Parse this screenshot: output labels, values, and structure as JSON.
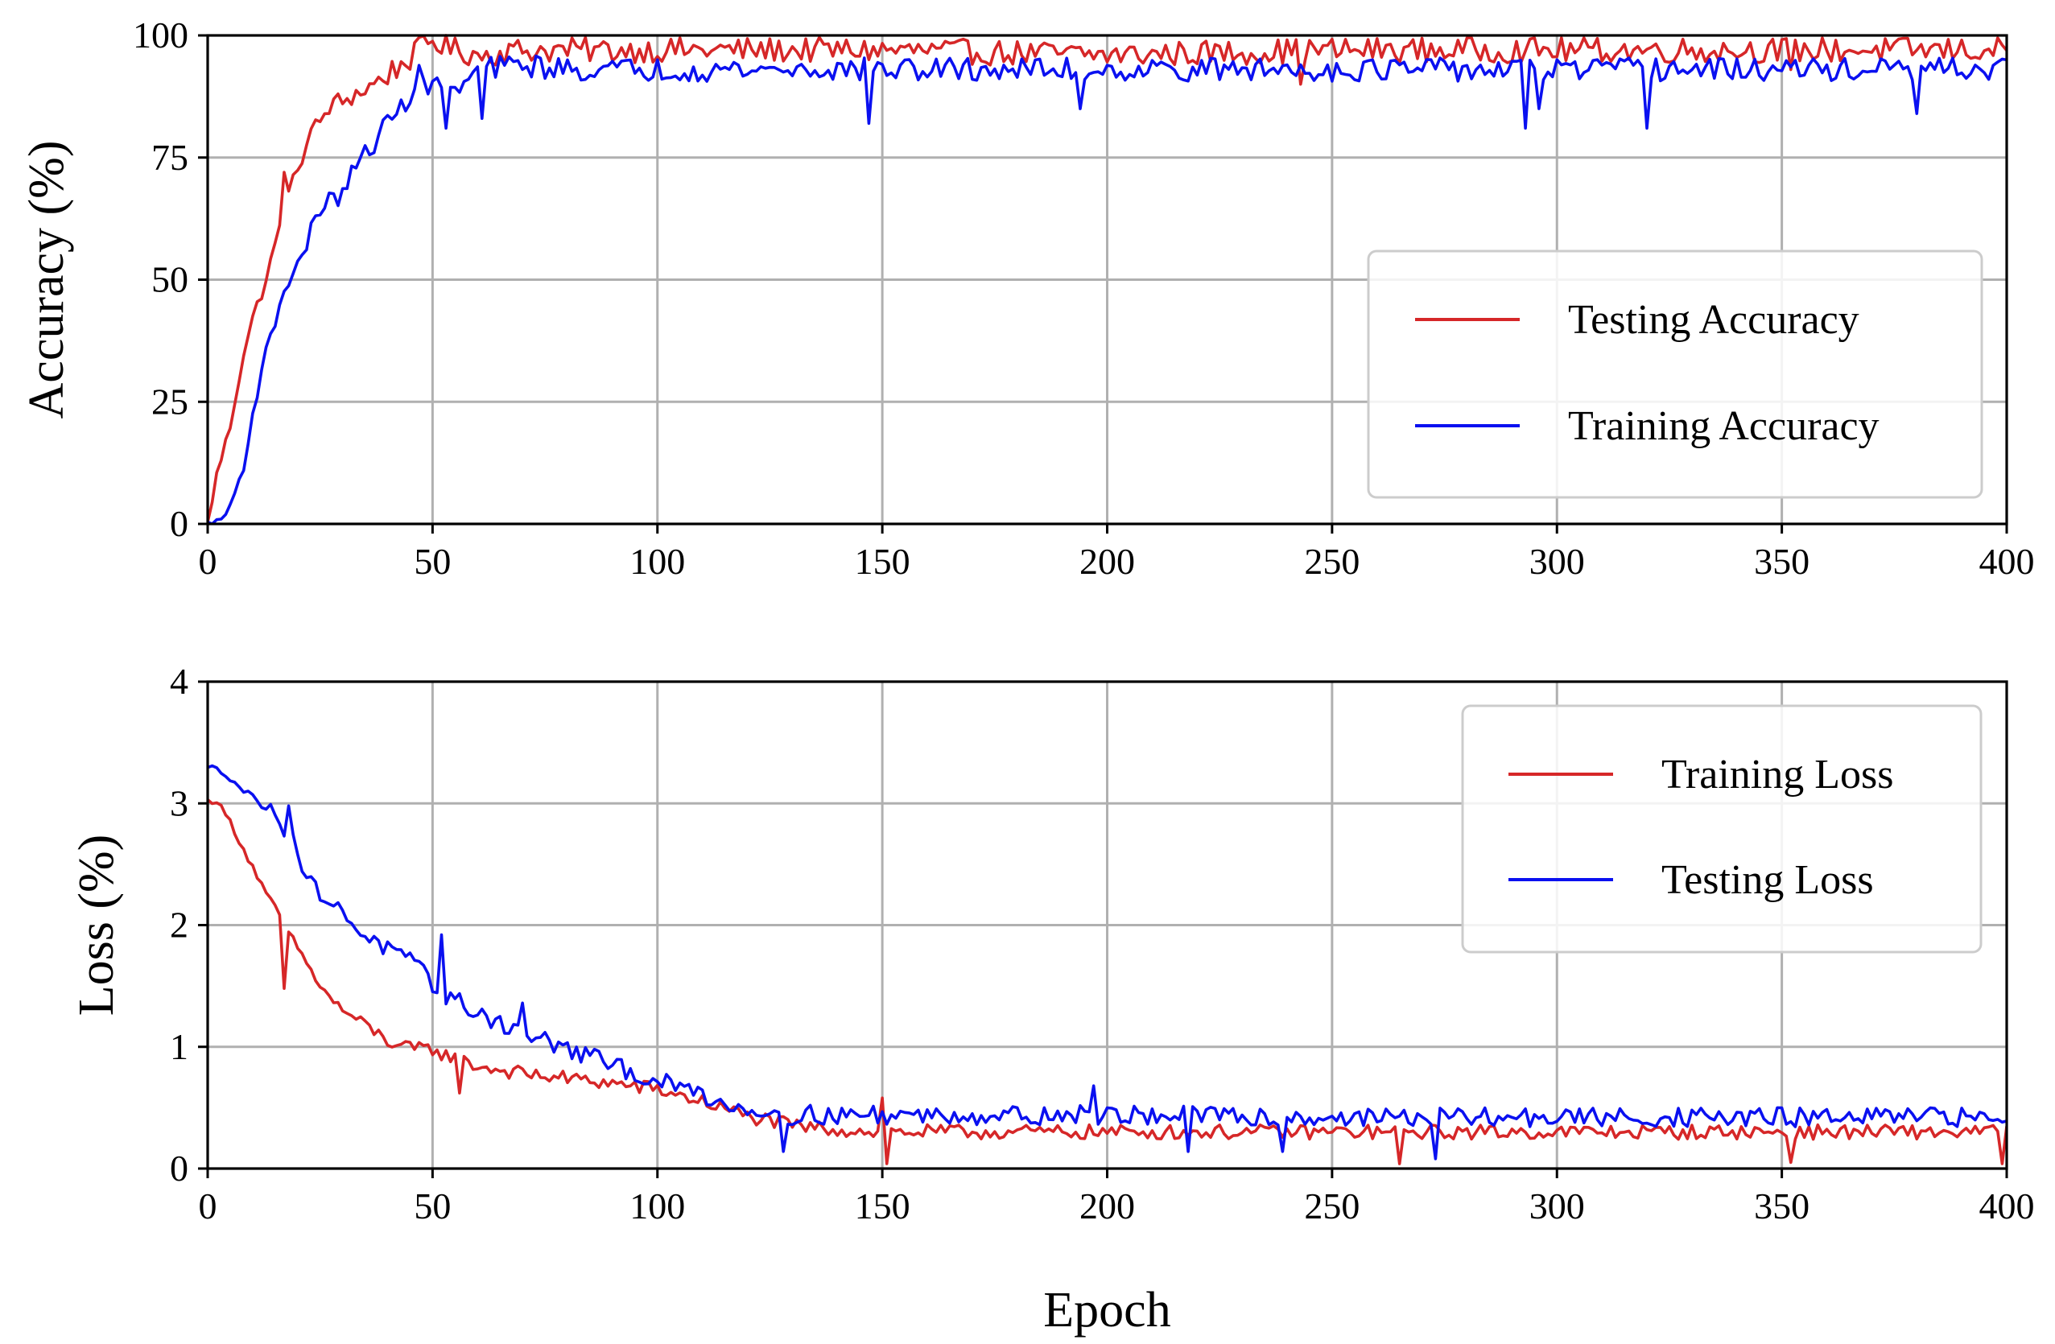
{
  "chart_data": [
    {
      "type": "line",
      "xlabel": "",
      "ylabel": "Accuracy (%)",
      "xlim": [
        0,
        400
      ],
      "ylim": [
        0,
        100
      ],
      "xticks": [
        0,
        50,
        100,
        150,
        200,
        250,
        300,
        350,
        400
      ],
      "yticks": [
        0,
        25,
        50,
        75,
        100
      ],
      "grid": true,
      "legend_position": "center-right",
      "series": [
        {
          "name": "Testing Accuracy",
          "color": "#d62728",
          "key_points": [
            [
              0,
              0
            ],
            [
              2,
              10
            ],
            [
              5,
              20
            ],
            [
              8,
              35
            ],
            [
              10,
              42
            ],
            [
              13,
              50
            ],
            [
              17,
              64
            ],
            [
              20,
              73
            ],
            [
              23,
              80
            ],
            [
              27,
              85
            ],
            [
              30,
              87
            ],
            [
              33,
              88
            ],
            [
              37,
              90
            ],
            [
              40,
              92
            ],
            [
              43,
              94
            ],
            [
              46,
              96
            ],
            [
              48,
              98
            ],
            [
              50,
              99
            ],
            [
              55,
              97
            ],
            [
              60,
              96
            ],
            [
              70,
              97
            ],
            [
              80,
              97
            ],
            [
              100,
              97
            ],
            [
              150,
              97
            ],
            [
              200,
              96
            ],
            [
              250,
              97
            ],
            [
              300,
              97
            ],
            [
              350,
              97
            ],
            [
              400,
              97
            ]
          ],
          "noise": 2.6,
          "dips": [
            [
              17,
              72
            ],
            [
              27,
              84
            ],
            [
              30,
              86
            ],
            [
              243,
              90
            ],
            [
              352,
              93
            ]
          ]
        },
        {
          "name": "Training Accuracy",
          "color": "#0a10f0",
          "key_points": [
            [
              0,
              0
            ],
            [
              2,
              0
            ],
            [
              4,
              2
            ],
            [
              6,
              6
            ],
            [
              8,
              12
            ],
            [
              10,
              22
            ],
            [
              12,
              32
            ],
            [
              14,
              38
            ],
            [
              16,
              45
            ],
            [
              18,
              50
            ],
            [
              20,
              53
            ],
            [
              22,
              57
            ],
            [
              24,
              63
            ],
            [
              26,
              66
            ],
            [
              28,
              66
            ],
            [
              30,
              68
            ],
            [
              33,
              73
            ],
            [
              36,
              77
            ],
            [
              40,
              82
            ],
            [
              43,
              85
            ],
            [
              46,
              90
            ],
            [
              48,
              93
            ],
            [
              50,
              91
            ],
            [
              53,
              87
            ],
            [
              56,
              89
            ],
            [
              60,
              93
            ],
            [
              70,
              94
            ],
            [
              80,
              93
            ],
            [
              100,
              93
            ],
            [
              150,
              93
            ],
            [
              200,
              93
            ],
            [
              250,
              93
            ],
            [
              300,
              93
            ],
            [
              350,
              93
            ],
            [
              400,
              93
            ]
          ],
          "noise": 2.4,
          "dips": [
            [
              49,
              88
            ],
            [
              53,
              81
            ],
            [
              61,
              83
            ],
            [
              147,
              82
            ],
            [
              194,
              85
            ],
            [
              293,
              81
            ],
            [
              296,
              85
            ],
            [
              320,
              81
            ],
            [
              380,
              84
            ]
          ]
        }
      ]
    },
    {
      "type": "line",
      "xlabel": "Epoch",
      "ylabel": "Loss (%)",
      "xlim": [
        0,
        400
      ],
      "ylim": [
        0,
        4
      ],
      "xticks": [
        0,
        50,
        100,
        150,
        200,
        250,
        300,
        350,
        400
      ],
      "yticks": [
        0,
        1,
        2,
        3,
        4
      ],
      "grid": true,
      "legend_position": "upper-right",
      "series": [
        {
          "name": "Training Loss",
          "color": "#d62728",
          "key_points": [
            [
              0,
              3.02
            ],
            [
              2,
              3.02
            ],
            [
              5,
              2.85
            ],
            [
              8,
              2.62
            ],
            [
              10,
              2.48
            ],
            [
              13,
              2.25
            ],
            [
              16,
              2.08
            ],
            [
              18,
              1.92
            ],
            [
              20,
              1.82
            ],
            [
              23,
              1.62
            ],
            [
              26,
              1.45
            ],
            [
              30,
              1.3
            ],
            [
              35,
              1.18
            ],
            [
              40,
              1.05
            ],
            [
              45,
              0.98
            ],
            [
              50,
              0.98
            ],
            [
              55,
              0.9
            ],
            [
              60,
              0.84
            ],
            [
              70,
              0.78
            ],
            [
              80,
              0.74
            ],
            [
              90,
              0.7
            ],
            [
              100,
              0.65
            ],
            [
              105,
              0.6
            ],
            [
              110,
              0.55
            ],
            [
              120,
              0.43
            ],
            [
              130,
              0.35
            ],
            [
              140,
              0.32
            ],
            [
              150,
              0.3
            ],
            [
              200,
              0.3
            ],
            [
              250,
              0.3
            ],
            [
              300,
              0.3
            ],
            [
              350,
              0.3
            ],
            [
              400,
              0.3
            ]
          ],
          "noise": 0.06,
          "dips": [
            [
              17,
              1.48
            ],
            [
              56,
              0.62
            ],
            [
              151,
              0.04
            ],
            [
              265,
              0.04
            ],
            [
              352,
              0.05
            ],
            [
              399,
              0.04
            ]
          ],
          "spikes": [
            [
              150,
              0.58
            ]
          ]
        },
        {
          "name": "Testing Loss",
          "color": "#0a10f0",
          "key_points": [
            [
              0,
              3.28
            ],
            [
              2,
              3.3
            ],
            [
              5,
              3.22
            ],
            [
              8,
              3.1
            ],
            [
              12,
              3.0
            ],
            [
              15,
              2.92
            ],
            [
              17,
              2.78
            ],
            [
              18,
              2.95
            ],
            [
              20,
              2.55
            ],
            [
              23,
              2.35
            ],
            [
              26,
              2.22
            ],
            [
              30,
              2.1
            ],
            [
              35,
              1.92
            ],
            [
              40,
              1.8
            ],
            [
              45,
              1.7
            ],
            [
              50,
              1.52
            ],
            [
              52,
              1.45
            ],
            [
              55,
              1.38
            ],
            [
              60,
              1.28
            ],
            [
              65,
              1.2
            ],
            [
              70,
              1.12
            ],
            [
              75,
              1.05
            ],
            [
              80,
              0.98
            ],
            [
              85,
              0.92
            ],
            [
              90,
              0.85
            ],
            [
              95,
              0.78
            ],
            [
              100,
              0.72
            ],
            [
              105,
              0.66
            ],
            [
              110,
              0.62
            ],
            [
              115,
              0.52
            ],
            [
              120,
              0.5
            ],
            [
              125,
              0.46
            ],
            [
              130,
              0.44
            ],
            [
              150,
              0.44
            ],
            [
              200,
              0.44
            ],
            [
              250,
              0.42
            ],
            [
              300,
              0.42
            ],
            [
              350,
              0.42
            ],
            [
              400,
              0.42
            ]
          ],
          "noise": 0.08,
          "dips": [
            [
              128,
              0.14
            ],
            [
              218,
              0.14
            ],
            [
              239,
              0.14
            ],
            [
              273,
              0.08
            ]
          ],
          "spikes": [
            [
              18,
              2.98
            ],
            [
              52,
              1.92
            ],
            [
              70,
              1.36
            ],
            [
              197,
              0.68
            ]
          ]
        }
      ]
    }
  ]
}
